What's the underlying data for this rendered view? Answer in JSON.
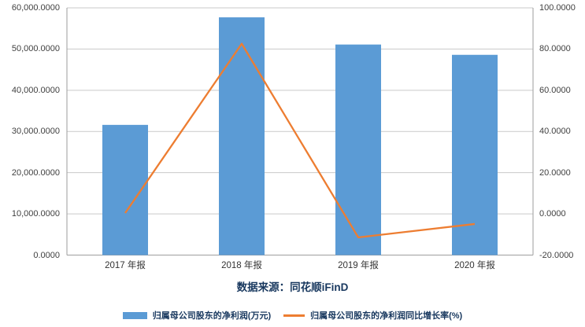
{
  "chart_data": {
    "type": "combo",
    "categories": [
      "2017 年报",
      "2018 年报",
      "2019 年报",
      "2020 年报"
    ],
    "series": [
      {
        "name": "归属母公司股东的净利润(万元)",
        "type": "bar",
        "y_axis": "left",
        "color": "#5B9BD5",
        "values": [
          31600,
          57700,
          51100,
          48600
        ]
      },
      {
        "name": "归属母公司股东的净利润同比增长率(%)",
        "type": "line",
        "y_axis": "right",
        "color": "#ED7D31",
        "values": [
          0.4,
          82.6,
          -11.4,
          -4.9
        ]
      }
    ],
    "left_axis": {
      "range": [
        0,
        60000
      ],
      "step": 10000,
      "tick_labels": [
        "60,000.0000",
        "50,000.0000",
        "40,000.0000",
        "30,000.0000",
        "20,000.0000",
        "10,000.0000",
        "0.0000"
      ]
    },
    "right_axis": {
      "range": [
        -20,
        100
      ],
      "step": 20,
      "tick_labels": [
        "100.0000",
        "80.0000",
        "60.0000",
        "40.0000",
        "20.0000",
        "0.0000",
        "-20.0000"
      ]
    },
    "title": "",
    "legend_position": "bottom",
    "grid": "horizontal",
    "grid_color": "#C9C9C9",
    "axis_color": "#9E9E9E",
    "source_note": "数据来源：同花顺iFinD"
  }
}
